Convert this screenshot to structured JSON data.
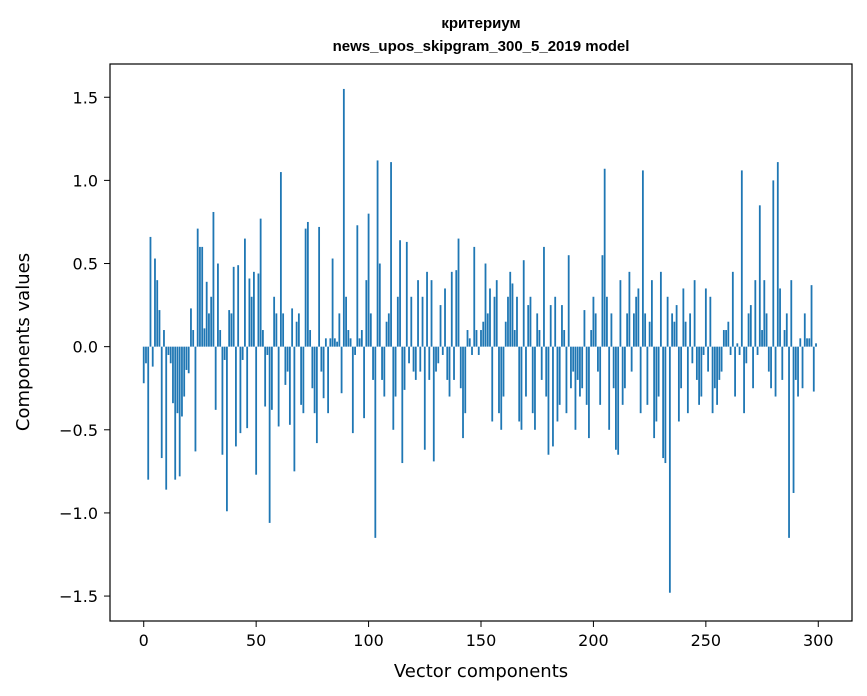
{
  "chart_data": {
    "type": "bar",
    "title": "критериум",
    "subtitle": "news_upos_skipgram_300_5_2019 model",
    "xlabel": "Vector components",
    "ylabel": "Components values",
    "xlim": [
      -15,
      315
    ],
    "ylim": [
      -1.65,
      1.7
    ],
    "xticks": [
      0,
      50,
      100,
      150,
      200,
      250,
      300
    ],
    "yticks": [
      -1.5,
      -1.0,
      -0.5,
      0.0,
      0.5,
      1.0,
      1.5
    ],
    "xtick_labels": [
      "0",
      "50",
      "100",
      "150",
      "200",
      "250",
      "300"
    ],
    "ytick_labels": [
      "−1.5",
      "−1.0",
      "−0.5",
      "0.0",
      "0.5",
      "1.0",
      "1.5"
    ],
    "bar_color": "#1f77b4",
    "grid": false,
    "values": [
      -0.22,
      -0.1,
      -0.8,
      0.66,
      -0.12,
      0.53,
      0.4,
      0.22,
      -0.67,
      0.1,
      -0.86,
      -0.05,
      -0.1,
      -0.34,
      -0.8,
      -0.4,
      -0.78,
      -0.42,
      -0.3,
      -0.14,
      -0.16,
      0.23,
      0.1,
      -0.63,
      0.71,
      0.6,
      0.6,
      0.11,
      0.39,
      0.2,
      0.3,
      0.81,
      -0.38,
      0.5,
      0.1,
      -0.65,
      -0.08,
      -0.99,
      0.22,
      0.2,
      0.48,
      -0.6,
      0.49,
      -0.52,
      -0.08,
      0.65,
      -0.49,
      0.41,
      0.3,
      0.45,
      -0.77,
      0.44,
      0.77,
      0.1,
      -0.36,
      -0.05,
      -1.06,
      -0.38,
      0.3,
      0.2,
      -0.48,
      1.05,
      0.2,
      -0.23,
      -0.15,
      -0.47,
      0.23,
      -0.75,
      0.15,
      0.2,
      -0.35,
      -0.4,
      0.71,
      0.75,
      0.1,
      -0.25,
      -0.4,
      -0.58,
      0.72,
      -0.15,
      -0.31,
      0.05,
      -0.4,
      0.05,
      0.53,
      0.05,
      0.03,
      0.2,
      -0.28,
      1.55,
      0.3,
      0.1,
      0.05,
      -0.52,
      -0.05,
      0.73,
      0.05,
      0.1,
      -0.43,
      0.4,
      0.8,
      0.2,
      -0.2,
      -1.15,
      1.12,
      0.5,
      -0.2,
      -0.3,
      0.15,
      0.2,
      1.11,
      -0.5,
      -0.3,
      0.3,
      0.64,
      -0.7,
      -0.26,
      0.63,
      -0.1,
      0.3,
      -0.15,
      -0.2,
      0.4,
      -0.15,
      0.3,
      -0.62,
      0.45,
      -0.2,
      0.4,
      -0.69,
      -0.15,
      -0.1,
      0.25,
      -0.05,
      0.35,
      -0.2,
      -0.3,
      0.45,
      -0.2,
      0.46,
      0.65,
      -0.25,
      -0.55,
      -0.4,
      0.1,
      0.05,
      -0.05,
      0.6,
      0.1,
      -0.05,
      0.1,
      0.15,
      0.5,
      0.2,
      0.35,
      -0.45,
      0.3,
      0.4,
      -0.4,
      -0.5,
      -0.3,
      0.15,
      0.3,
      0.45,
      0.38,
      0.1,
      0.3,
      -0.45,
      -0.5,
      0.52,
      -0.3,
      0.25,
      0.3,
      -0.4,
      -0.5,
      0.2,
      0.1,
      -0.2,
      0.6,
      -0.3,
      -0.65,
      0.25,
      -0.6,
      0.3,
      -0.45,
      -0.35,
      0.25,
      0.1,
      -0.4,
      0.55,
      -0.25,
      -0.15,
      -0.5,
      -0.2,
      -0.3,
      -0.25,
      0.22,
      -0.35,
      -0.55,
      0.1,
      0.3,
      0.2,
      -0.15,
      -0.35,
      0.55,
      1.07,
      0.3,
      -0.5,
      0.2,
      -0.25,
      -0.62,
      -0.65,
      0.4,
      -0.35,
      -0.25,
      0.2,
      0.45,
      -0.15,
      0.2,
      0.3,
      0.35,
      -0.4,
      1.06,
      0.2,
      -0.35,
      0.15,
      0.4,
      -0.55,
      -0.45,
      -0.3,
      0.45,
      -0.67,
      -0.7,
      0.3,
      -1.48,
      0.2,
      0.15,
      0.25,
      -0.45,
      -0.25,
      0.35,
      0.15,
      -0.4,
      0.2,
      -0.1,
      0.4,
      -0.2,
      -0.35,
      -0.3,
      -0.05,
      0.35,
      -0.15,
      0.3,
      -0.4,
      -0.25,
      -0.35,
      -0.2,
      -0.15,
      0.1,
      0.1,
      0.15,
      -0.05,
      0.45,
      -0.3,
      0.02,
      -0.05,
      1.06,
      -0.4,
      -0.1,
      0.2,
      0.25,
      -0.25,
      0.4,
      -0.05,
      0.85,
      0.1,
      0.4,
      0.2,
      -0.15,
      -0.25,
      1.0,
      -0.3,
      1.11,
      0.35,
      -0.2,
      0.1,
      0.2,
      -1.15,
      0.4,
      -0.88,
      -0.2,
      -0.3,
      0.05,
      -0.25,
      0.2,
      0.05,
      0.05,
      0.37,
      -0.27,
      0.02
    ]
  }
}
